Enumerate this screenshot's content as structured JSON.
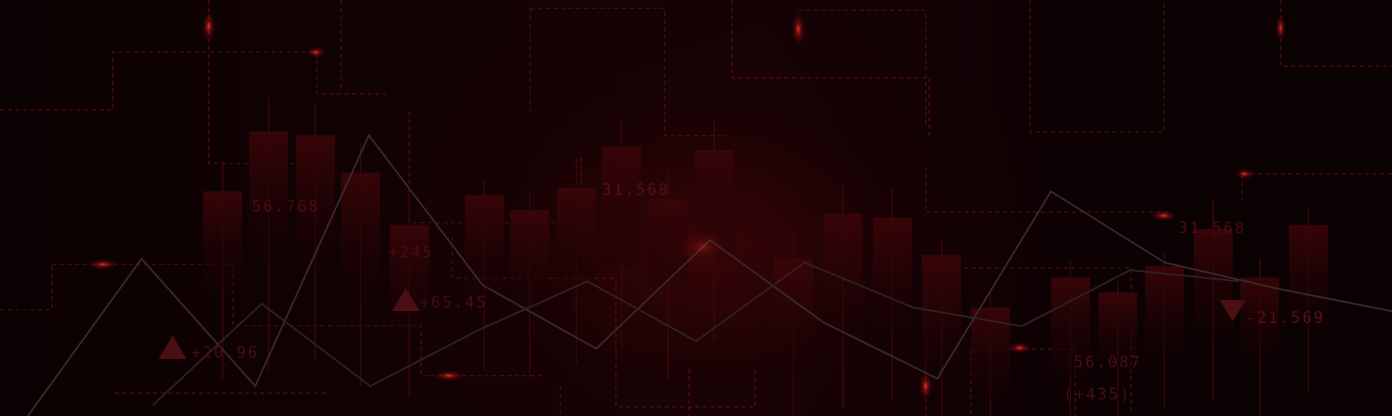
{
  "scene": {
    "colors": {
      "background": "#0a0102",
      "candle_top": "#3a0508",
      "candle_bottom": "#150204",
      "dashed_line": "#7a1418",
      "trend_line": "#3a2a2a",
      "glow": "#ff2a2a",
      "readout_text": "#4a0d10"
    },
    "readouts": {
      "r1": "56.768",
      "r2": "31.568",
      "r3": "+245",
      "r4": "+65.45",
      "r5": "+20.96",
      "r6": "31.568",
      "r7": "-21.569",
      "r8": "56.087",
      "r9": "(+435)"
    },
    "icons": {
      "up": "triangle-up-icon",
      "down": "triangle-down-icon"
    }
  },
  "chart_data": {
    "type": "bar",
    "candles": [
      {
        "open": 33,
        "close": 60,
        "high": 68,
        "low": 10
      },
      {
        "open": 40,
        "close": 76,
        "high": 85,
        "low": 12
      },
      {
        "open": 38,
        "close": 75,
        "high": 83,
        "low": 15
      },
      {
        "open": 30,
        "close": 65,
        "high": 73,
        "low": 8
      },
      {
        "open": 22,
        "close": 51,
        "high": 60,
        "low": 5
      },
      {
        "open": 30,
        "close": 59,
        "high": 63,
        "low": 12
      },
      {
        "open": 28,
        "close": 55,
        "high": 60,
        "low": 10
      },
      {
        "open": 32,
        "close": 61,
        "high": 69,
        "low": 14
      },
      {
        "open": 40,
        "close": 72,
        "high": 80,
        "low": 18
      },
      {
        "open": 35,
        "close": 58,
        "high": 66,
        "low": 10
      },
      {
        "open": 42,
        "close": 71,
        "high": 79,
        "low": 20
      },
      {
        "open": 10,
        "close": 42,
        "high": 50,
        "low": 0
      },
      {
        "open": 18,
        "close": 54,
        "high": 62,
        "low": 2
      },
      {
        "open": 20,
        "close": 53,
        "high": 61,
        "low": 4
      },
      {
        "open": 8,
        "close": 43,
        "high": 47,
        "low": 0
      },
      {
        "open": 5,
        "close": 29,
        "high": 33,
        "low": 0
      },
      {
        "open": 10,
        "close": 37,
        "high": 42,
        "low": 0
      },
      {
        "open": 12,
        "close": 33,
        "high": 36,
        "low": 0
      },
      {
        "open": 15,
        "close": 40,
        "high": 44,
        "low": 2
      },
      {
        "open": 20,
        "close": 50,
        "high": 58,
        "low": 4
      },
      {
        "open": 15,
        "close": 37,
        "high": 42,
        "low": 0
      },
      {
        "open": 22,
        "close": 51,
        "high": 56,
        "low": 6
      }
    ],
    "trend_lines": [
      {
        "values": [
          0,
          42,
          8,
          75,
          35,
          18,
          47,
          25,
          10,
          60,
          41,
          34,
          28
        ]
      },
      {
        "values": [
          3,
          30,
          8,
          23,
          36,
          20,
          41,
          29,
          24,
          39,
          36
        ]
      }
    ],
    "ylim": [
      0,
      100
    ]
  }
}
